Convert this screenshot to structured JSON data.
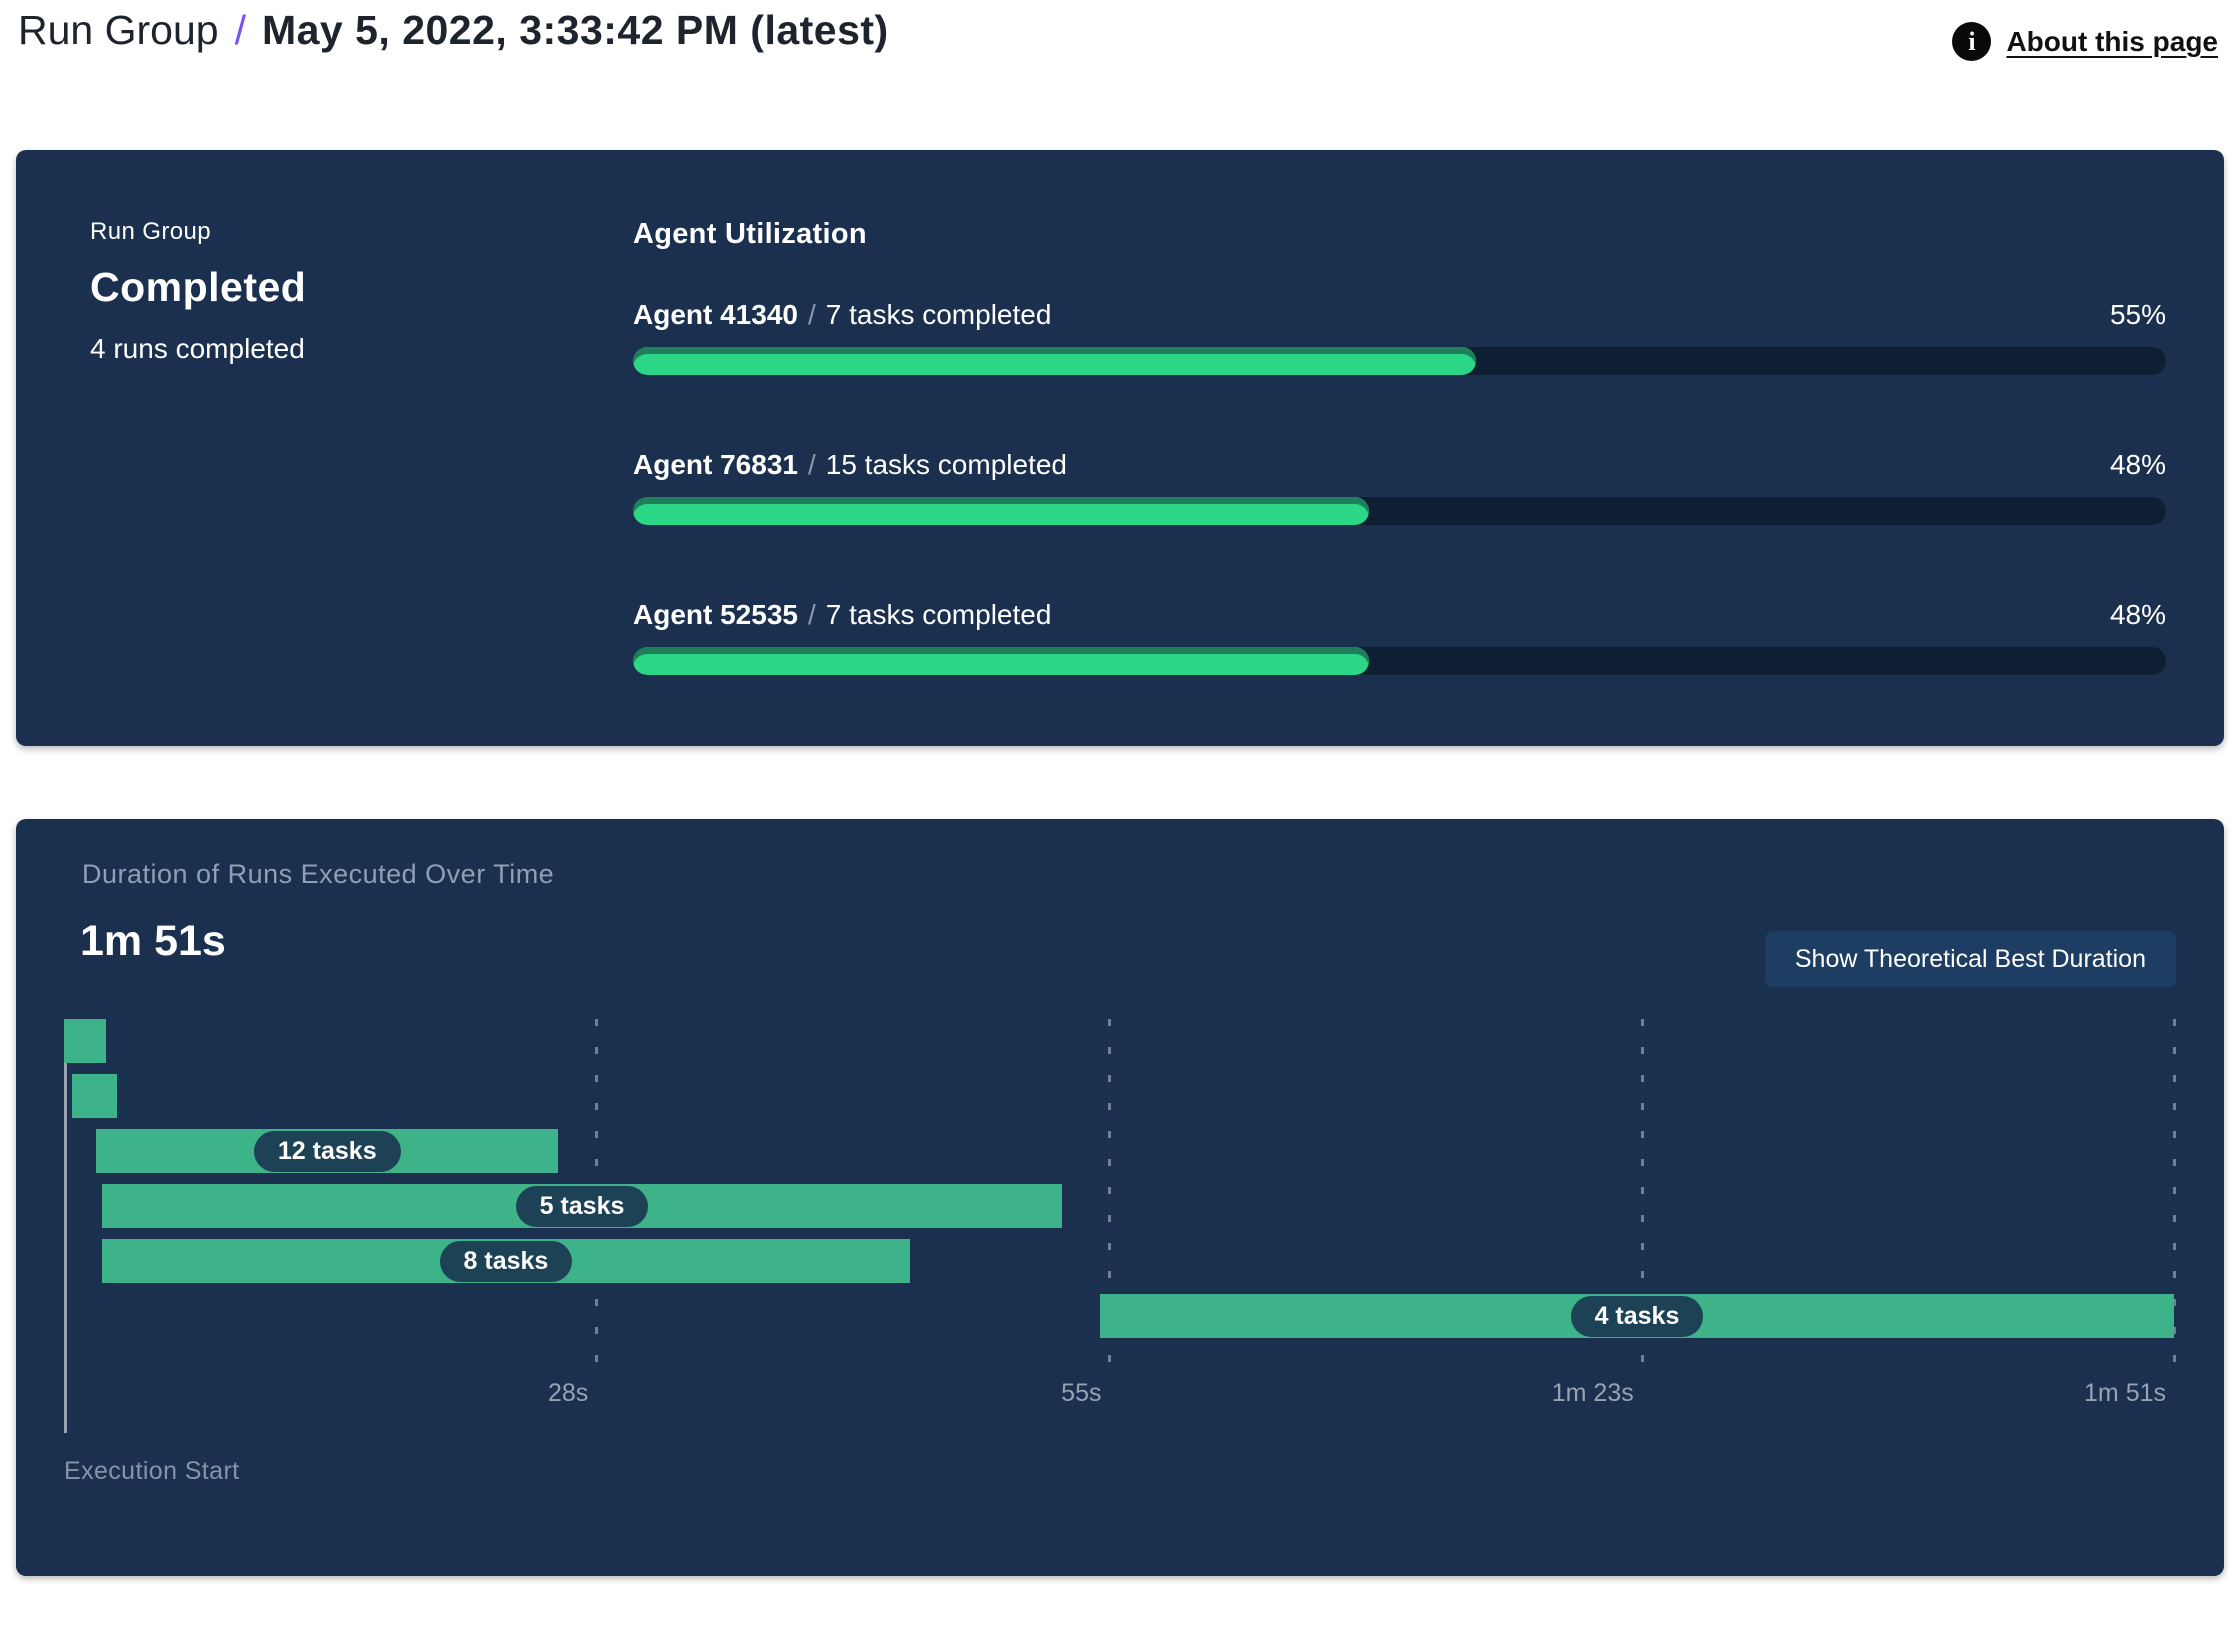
{
  "header": {
    "breadcrumb": "Run Group",
    "separator": "/",
    "title": "May 5, 2022, 3:33:42 PM (latest)",
    "about": {
      "label": "About this page",
      "icon_glyph": "i"
    }
  },
  "run_group_panel": {
    "label": "Run Group",
    "status": "Completed",
    "runs_summary": "4 runs completed"
  },
  "duration_panel": {
    "button_label": "Show Theoretical Best Duration"
  },
  "colors": {
    "panel_bg": "#1b2f4f",
    "progress_track": "#0e1e33",
    "progress_fill": "#2bd687",
    "progress_fill_edge": "#1f7f5b",
    "gantt_bar": "#3eb389",
    "pill_bg": "#1d4155",
    "button_bg": "#1d3d62",
    "accent_purple": "#7950f2",
    "muted_text": "#8c99ac"
  },
  "chart_data": [
    {
      "type": "bar",
      "title": "Agent Utilization",
      "separator": "/",
      "categories": [
        "Agent 41340",
        "Agent 76831",
        "Agent 52535"
      ],
      "task_labels": [
        "7 tasks completed",
        "15 tasks completed",
        "7 tasks completed"
      ],
      "values": [
        55,
        48,
        48
      ],
      "value_labels": [
        "55%",
        "48%",
        "48%"
      ],
      "xlim": [
        0,
        100
      ],
      "legend": "none",
      "orientation": "horizontal"
    },
    {
      "type": "gantt",
      "title": "Duration of Runs Executed Over Time",
      "total_duration_label": "1m 51s",
      "x_start_label": "Execution Start",
      "max_seconds": 111,
      "grid": "dashed-vertical",
      "ticks": [
        {
          "label": "28s",
          "seconds": 28
        },
        {
          "label": "55s",
          "seconds": 55
        },
        {
          "label": "1m 23s",
          "seconds": 83
        },
        {
          "label": "1m 51s",
          "seconds": 111
        }
      ],
      "bars": [
        {
          "start_seconds": 0,
          "end_seconds": 2.2,
          "label": ""
        },
        {
          "start_seconds": 0.4,
          "end_seconds": 2.8,
          "label": ""
        },
        {
          "start_seconds": 1.7,
          "end_seconds": 26,
          "label": "12 tasks"
        },
        {
          "start_seconds": 2,
          "end_seconds": 52.5,
          "label": "5 tasks"
        },
        {
          "start_seconds": 2,
          "end_seconds": 44.5,
          "label": "8 tasks"
        },
        {
          "start_seconds": 54.5,
          "end_seconds": 111,
          "label": "4 tasks"
        }
      ]
    }
  ]
}
